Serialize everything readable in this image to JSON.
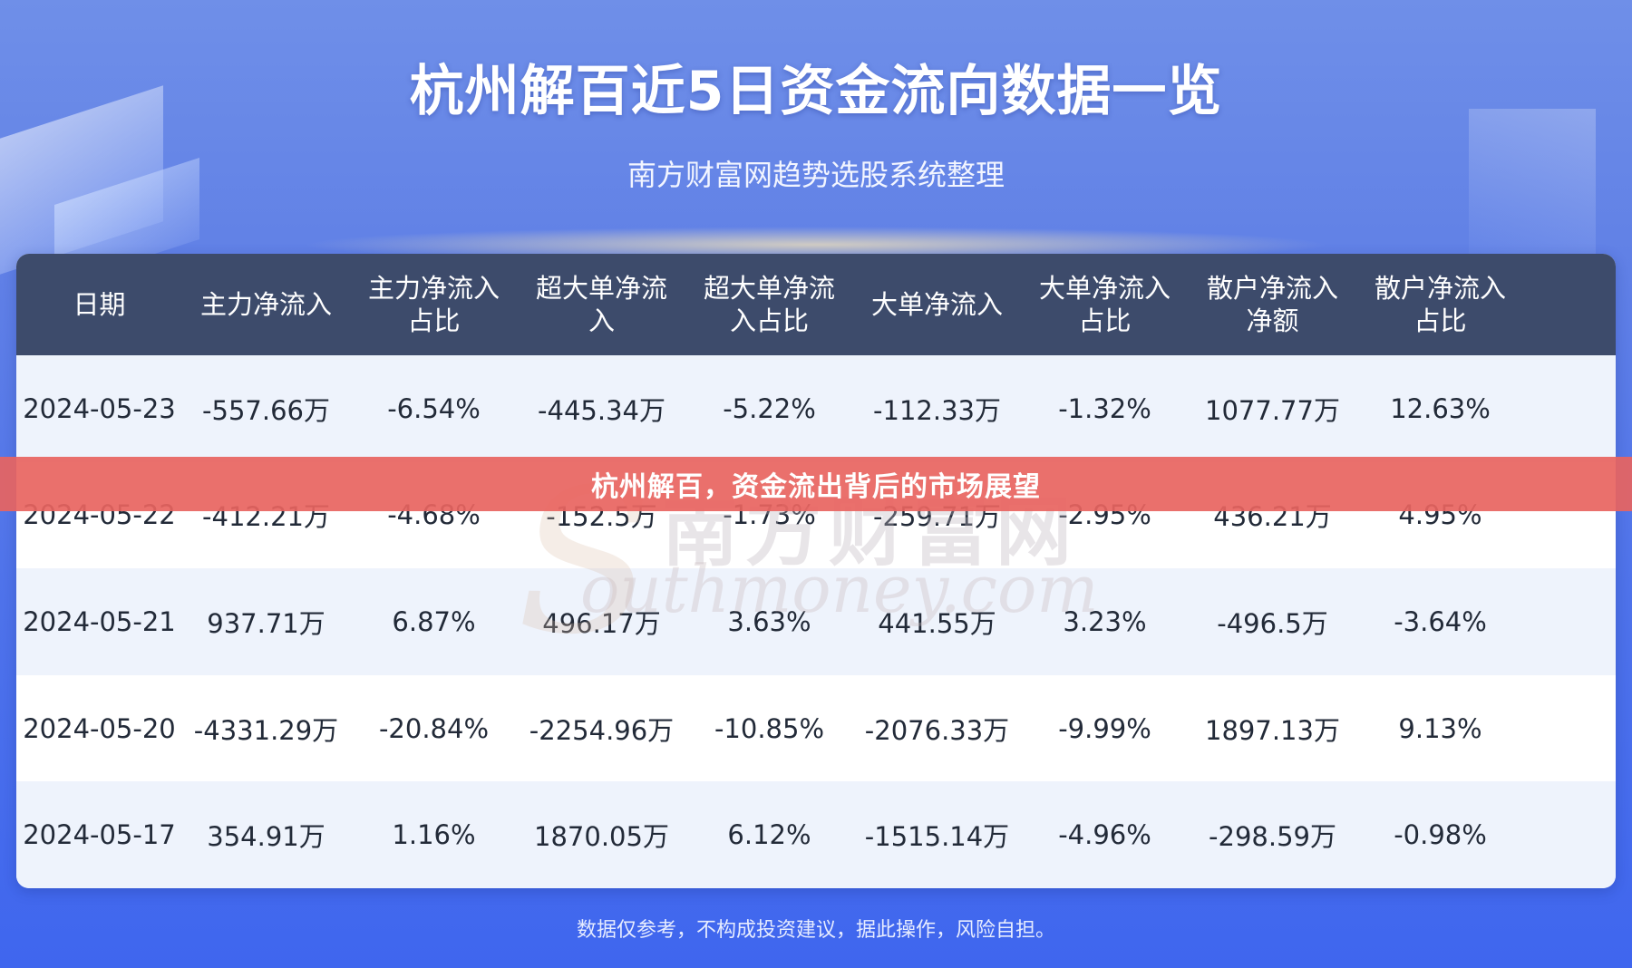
{
  "header": {
    "title": "杭州解百近5日资金流向数据一览",
    "subtitle": "南方财富网趋势选股系统整理"
  },
  "table": {
    "columns": [
      [
        "日期"
      ],
      [
        "主力净流入"
      ],
      [
        "主力净流入",
        "占比"
      ],
      [
        "超大单净流",
        "入"
      ],
      [
        "超大单净流",
        "入占比"
      ],
      [
        "大单净流入"
      ],
      [
        "大单净流入",
        "占比"
      ],
      [
        "散户净流入",
        "净额"
      ],
      [
        "散户净流入",
        "占比"
      ]
    ],
    "rows": [
      [
        "2024-05-23",
        "-557.66万",
        "-6.54%",
        "-445.34万",
        "-5.22%",
        "-112.33万",
        "-1.32%",
        "1077.77万",
        "12.63%"
      ],
      [
        "2024-05-22",
        "-412.21万",
        "-4.68%",
        "-152.5万",
        "-1.73%",
        "-259.71万",
        "-2.95%",
        "436.21万",
        "4.95%"
      ],
      [
        "2024-05-21",
        "937.71万",
        "6.87%",
        "496.17万",
        "3.63%",
        "441.55万",
        "3.23%",
        "-496.5万",
        "-3.64%"
      ],
      [
        "2024-05-20",
        "-4331.29万",
        "-20.84%",
        "-2254.96万",
        "-10.85%",
        "-2076.33万",
        "-9.99%",
        "1897.13万",
        "9.13%"
      ],
      [
        "2024-05-17",
        "354.91万",
        "1.16%",
        "1870.05万",
        "6.12%",
        "-1515.14万",
        "-4.96%",
        "-298.59万",
        "-0.98%"
      ]
    ]
  },
  "watermark": {
    "cn": "南方财富网",
    "en": "outhmoney.com",
    "letter": "S"
  },
  "banner": {
    "text": "杭州解百，资金流出背后的市场展望",
    "color": "#e86460"
  },
  "footer": {
    "disclaimer": "数据仅参考，不构成投资建议，据此操作，风险自担。"
  }
}
